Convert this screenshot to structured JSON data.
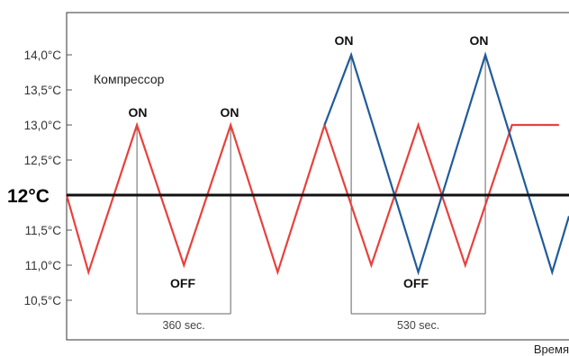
{
  "chart_data": {
    "type": "line",
    "title": "",
    "xlabel": "Время",
    "ylabel": "",
    "ylim": [
      10.2,
      14.7
    ],
    "xlim": [
      0,
      2000
    ],
    "grid": false,
    "y_ticks": [
      "14,0°C",
      "13,5°C",
      "13,0°C",
      "12,5°C",
      "11,5°C",
      "11,0°C",
      "10,5°C"
    ],
    "y_tick_values": [
      14.0,
      13.5,
      13.0,
      12.5,
      11.5,
      11.0,
      10.5
    ],
    "setpoint": {
      "value": 12.0,
      "label": "12°C",
      "color": "#111111"
    },
    "series": [
      {
        "color": "#e8413c",
        "x": [
          0,
          87,
          280,
          467,
          653,
          840,
          1027,
          1213,
          1400,
          1587,
          1773,
          1960
        ],
        "y": [
          12.0,
          10.9,
          13.0,
          11.0,
          13.0,
          10.9,
          13.0,
          11.0,
          13.0,
          11.0,
          13.0,
          13.0
        ]
      },
      {
        "color": "#1f5b9c",
        "x": [
          1027,
          1133,
          1400,
          1667,
          1933,
          2000
        ],
        "y": [
          13.0,
          14.0,
          10.9,
          14.0,
          10.9,
          11.7
        ]
      }
    ],
    "annotations": {
      "compressor_label": "Компрессор",
      "on_labels": [
        "ON",
        "ON",
        "ON",
        "ON"
      ],
      "off_labels": [
        "OFF",
        "OFF"
      ],
      "intervals": [
        {
          "label": "360 sec.",
          "from": 280,
          "to": 653
        },
        {
          "label": "530 sec.",
          "from": 1133,
          "to": 1667
        }
      ]
    }
  }
}
